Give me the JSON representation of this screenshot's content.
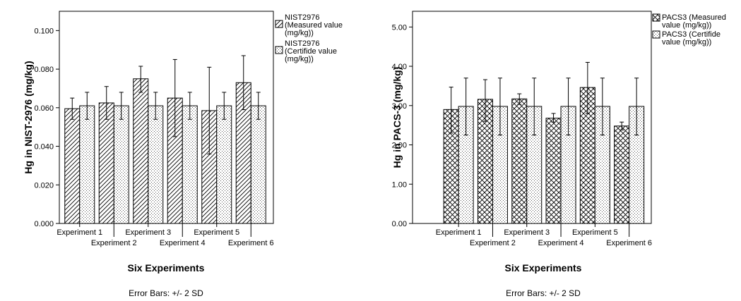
{
  "chart_data": [
    {
      "type": "bar",
      "title": "",
      "xlabel": "Six Experiments",
      "ylabel": "Hg in NIST-2976 (mg/kg)",
      "footnote": "Error Bars: +/- 2 SD",
      "categories": [
        "Experiment 1",
        "Experiment 2",
        "Experiment 3",
        "Experiment 4",
        "Experiment 5",
        "Experiment 6"
      ],
      "ylim": [
        0,
        0.11
      ],
      "yticks": [
        0.0,
        0.02,
        0.04,
        0.06,
        0.08,
        0.1
      ],
      "ytick_labels": [
        "0.000",
        "0.020",
        "0.040",
        "0.060",
        "0.080",
        "0.100"
      ],
      "grid": false,
      "legend_position": "right",
      "series": [
        {
          "name": "NIST2976 (Measured value (mg/kg))",
          "legend_lines": [
            "NIST2976",
            "(Measured value",
            "(mg/kg))"
          ],
          "pattern": "diagonal-hatch",
          "values": [
            0.0595,
            0.0625,
            0.075,
            0.065,
            0.0585,
            0.073
          ],
          "err_low": [
            0.054,
            0.054,
            0.068,
            0.045,
            0.036,
            0.059
          ],
          "err_high": [
            0.065,
            0.071,
            0.0815,
            0.085,
            0.081,
            0.087
          ]
        },
        {
          "name": "NIST2976 (Certifide value (mg/kg))",
          "legend_lines": [
            "NIST2976",
            "(Certifide value",
            "(mg/kg))"
          ],
          "pattern": "dots",
          "values": [
            0.061,
            0.061,
            0.061,
            0.061,
            0.061,
            0.061
          ],
          "err_low": [
            0.054,
            0.054,
            0.054,
            0.054,
            0.054,
            0.054
          ],
          "err_high": [
            0.068,
            0.068,
            0.068,
            0.068,
            0.068,
            0.068
          ]
        }
      ]
    },
    {
      "type": "bar",
      "title": "",
      "xlabel": "Six Experiments",
      "ylabel": "Hg in PACS-3 (mg/kg)",
      "footnote": "Error Bars: +/- 2 SD",
      "categories": [
        "Experiment 1",
        "Experiment 2",
        "Experiment 3",
        "Experiment 4",
        "Experiment 5",
        "Experiment 6"
      ],
      "ylim": [
        0,
        5.4
      ],
      "yticks": [
        0,
        1,
        2,
        3,
        4,
        5
      ],
      "ytick_labels": [
        "0.00",
        "1.00",
        "2.00",
        "3.00",
        "4.00",
        "5.00"
      ],
      "grid": false,
      "legend_position": "right",
      "series": [
        {
          "name": "PACS3 (Measured value (mg/kg))",
          "legend_lines": [
            "PACS3 (Measured",
            "value (mg/kg))"
          ],
          "pattern": "crosshatch",
          "values": [
            2.9,
            3.16,
            3.17,
            2.68,
            3.46,
            2.48
          ],
          "err_low": [
            2.3,
            2.6,
            3.03,
            2.58,
            2.8,
            2.38
          ],
          "err_high": [
            3.47,
            3.66,
            3.3,
            2.8,
            4.1,
            2.58
          ]
        },
        {
          "name": "PACS3 (Certifide value (mg/kg))",
          "legend_lines": [
            "PACS3 (Certifide",
            "value (mg/kg))"
          ],
          "pattern": "dots",
          "values": [
            2.98,
            2.98,
            2.98,
            2.98,
            2.98,
            2.98
          ],
          "err_low": [
            2.25,
            2.25,
            2.25,
            2.25,
            2.25,
            2.25
          ],
          "err_high": [
            3.7,
            3.7,
            3.7,
            3.7,
            3.7,
            3.7
          ]
        }
      ]
    }
  ]
}
